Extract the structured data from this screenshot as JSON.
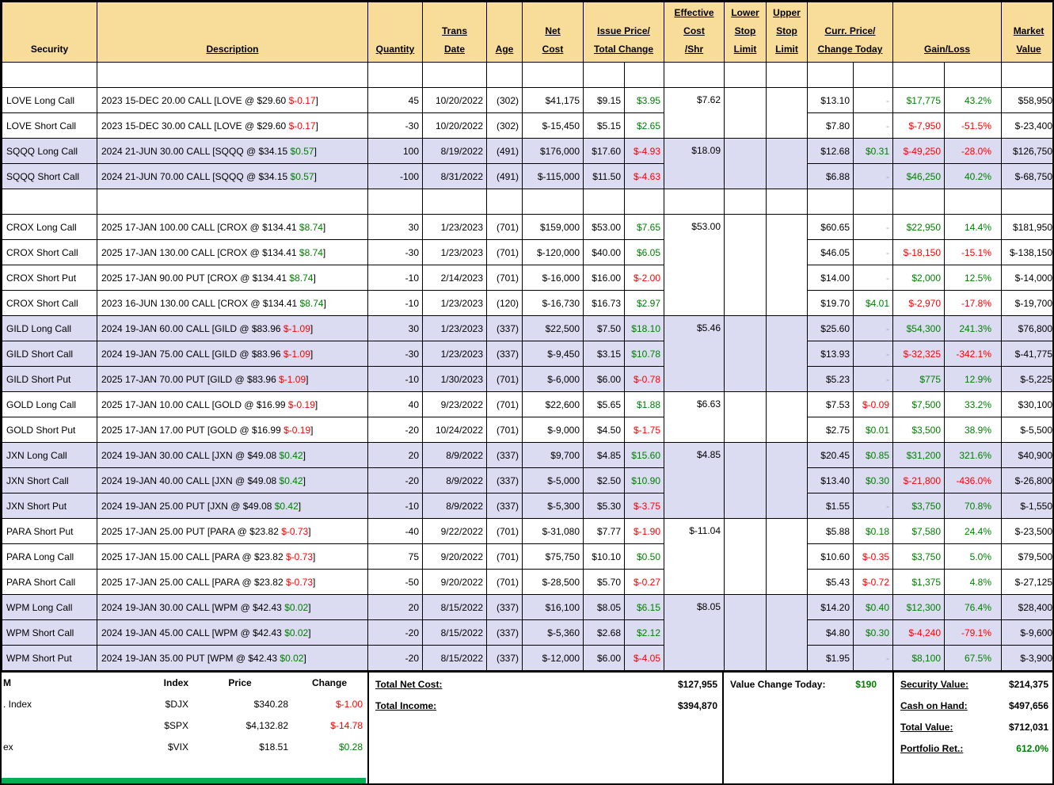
{
  "colors": {
    "positive": "#008000",
    "negative": "#FF0000",
    "neutral_dash": "#9BA3B0",
    "header_bg": "#F8DC9A",
    "row_alt_bg": "#DBDBF2",
    "accent_bar": "#00B050"
  },
  "positions": {
    "desc_close": "]",
    "header_cells": [
      {
        "id": "security",
        "label": "Security",
        "underline": false
      },
      {
        "id": "description",
        "label": "Description",
        "underline": true
      },
      {
        "id": "quantity",
        "label": "Quantity",
        "underline": true
      },
      {
        "id": "trans-date",
        "label": "Trans\nDate",
        "underline": true
      },
      {
        "id": "age",
        "label": "Age",
        "underline": true
      },
      {
        "id": "net-cost",
        "label": "Net\nCost",
        "underline": true
      },
      {
        "id": "issue-price-total-change",
        "label": "Issue Price/\nTotal Change",
        "underline": true,
        "span": 2
      },
      {
        "id": "effective-cost-shr",
        "label": "Effective\nCost\n/Shr",
        "underline": true
      },
      {
        "id": "lower-stop-limit",
        "label": "Lower\nStop\nLimit",
        "underline": true
      },
      {
        "id": "upper-stop-limit",
        "label": "Upper\nStop\nLimit",
        "underline": true
      },
      {
        "id": "curr-price-change-today",
        "label": "Curr. Price/\nChange Today",
        "underline": true,
        "span": 2
      },
      {
        "id": "gain-loss",
        "label": "Gain/Loss",
        "underline": true,
        "span": 2
      },
      {
        "id": "market-value",
        "label": "Market\nValue",
        "underline": true
      }
    ],
    "groups": [
      {
        "spacer": true
      },
      {
        "ticker": "LOVE",
        "shade": "base",
        "effective_cost": "$7.62",
        "rows": [
          {
            "security": "LOVE Long Call",
            "desc_pre": "2023 15-DEC 20.00 CALL [LOVE @ $29.60 ",
            "desc_chg": "$-0.17",
            "desc_dir": "down",
            "qty": "45",
            "date": "10/20/2022",
            "age": "(302)",
            "net_cost": "$41,175",
            "issue": "$9.15",
            "tchg": "$3.95",
            "tchg_dir": "up",
            "curr": "$13.10",
            "today": "-",
            "today_dir": "",
            "gain": "$17,775",
            "pct": "43.2%",
            "gain_dir": "up",
            "mv": "$58,950"
          },
          {
            "security": "LOVE Short Call",
            "desc_pre": "2023 15-DEC 30.00 CALL [LOVE @ $29.60 ",
            "desc_chg": "$-0.17",
            "desc_dir": "down",
            "qty": "-30",
            "date": "10/20/2022",
            "age": "(302)",
            "net_cost": "$-15,450",
            "issue": "$5.15",
            "tchg": "$2.65",
            "tchg_dir": "up",
            "curr": "$7.80",
            "today": "-",
            "today_dir": "",
            "gain": "$-7,950",
            "pct": "-51.5%",
            "gain_dir": "down",
            "mv": "$-23,400"
          }
        ]
      },
      {
        "ticker": "SQQQ",
        "shade": "alt",
        "effective_cost": "$18.09",
        "rows": [
          {
            "security": "SQQQ Long Call",
            "desc_pre": "2024 21-JUN 30.00 CALL [SQQQ @ $34.15 ",
            "desc_chg": "$0.57",
            "desc_dir": "up",
            "qty": "100",
            "date": "8/19/2022",
            "age": "(491)",
            "net_cost": "$176,000",
            "issue": "$17.60",
            "tchg": "$-4.93",
            "tchg_dir": "down",
            "curr": "$12.68",
            "today": "$0.31",
            "today_dir": "up",
            "gain": "$-49,250",
            "pct": "-28.0%",
            "gain_dir": "down",
            "mv": "$126,750"
          },
          {
            "security": "SQQQ Short Call",
            "desc_pre": "2024 21-JUN 70.00 CALL [SQQQ @ $34.15 ",
            "desc_chg": "$0.57",
            "desc_dir": "up",
            "qty": "-100",
            "date": "8/31/2022",
            "age": "(491)",
            "net_cost": "$-115,000",
            "issue": "$11.50",
            "tchg": "$-4.63",
            "tchg_dir": "down",
            "curr": "$6.88",
            "today": "-",
            "today_dir": "",
            "gain": "$46,250",
            "pct": "40.2%",
            "gain_dir": "up",
            "mv": "$-68,750"
          }
        ]
      },
      {
        "spacer": true
      },
      {
        "ticker": "CROX",
        "shade": "base",
        "effective_cost": "$53.00",
        "rows": [
          {
            "security": "CROX Long Call",
            "desc_pre": "2025 17-JAN 100.00 CALL [CROX @ $134.41 ",
            "desc_chg": "$8.74",
            "desc_dir": "up",
            "qty": "30",
            "date": "1/23/2023",
            "age": "(701)",
            "net_cost": "$159,000",
            "issue": "$53.00",
            "tchg": "$7.65",
            "tchg_dir": "up",
            "curr": "$60.65",
            "today": "-",
            "today_dir": "",
            "gain": "$22,950",
            "pct": "14.4%",
            "gain_dir": "up",
            "mv": "$181,950"
          },
          {
            "security": "CROX Short Call",
            "desc_pre": "2025 17-JAN 130.00 CALL [CROX @ $134.41 ",
            "desc_chg": "$8.74",
            "desc_dir": "up",
            "qty": "-30",
            "date": "1/23/2023",
            "age": "(701)",
            "net_cost": "$-120,000",
            "issue": "$40.00",
            "tchg": "$6.05",
            "tchg_dir": "up",
            "curr": "$46.05",
            "today": "-",
            "today_dir": "",
            "gain": "$-18,150",
            "pct": "-15.1%",
            "gain_dir": "down",
            "mv": "$-138,150"
          },
          {
            "security": "CROX Short Put",
            "desc_pre": "2025 17-JAN 90.00 PUT [CROX @ $134.41 ",
            "desc_chg": "$8.74",
            "desc_dir": "up",
            "qty": "-10",
            "date": "2/14/2023",
            "age": "(701)",
            "net_cost": "$-16,000",
            "issue": "$16.00",
            "tchg": "$-2.00",
            "tchg_dir": "down",
            "curr": "$14.00",
            "today": "-",
            "today_dir": "",
            "gain": "$2,000",
            "pct": "12.5%",
            "gain_dir": "up",
            "mv": "$-14,000"
          },
          {
            "security": "CROX Short Call",
            "desc_pre": "2023 16-JUN 130.00 CALL [CROX @ $134.41 ",
            "desc_chg": "$8.74",
            "desc_dir": "up",
            "qty": "-10",
            "date": "1/23/2023",
            "age": "(120)",
            "net_cost": "$-16,730",
            "issue": "$16.73",
            "tchg": "$2.97",
            "tchg_dir": "up",
            "curr": "$19.70",
            "today": "$4.01",
            "today_dir": "up",
            "gain": "$-2,970",
            "pct": "-17.8%",
            "gain_dir": "down",
            "mv": "$-19,700"
          }
        ]
      },
      {
        "ticker": "GILD",
        "shade": "alt",
        "effective_cost": "$5.46",
        "rows": [
          {
            "security": "GILD Long Call",
            "desc_pre": "2024 19-JAN 60.00 CALL [GILD @ $83.96 ",
            "desc_chg": "$-1.09",
            "desc_dir": "down",
            "qty": "30",
            "date": "1/23/2023",
            "age": "(337)",
            "net_cost": "$22,500",
            "issue": "$7.50",
            "tchg": "$18.10",
            "tchg_dir": "up",
            "curr": "$25.60",
            "today": "-",
            "today_dir": "",
            "gain": "$54,300",
            "pct": "241.3%",
            "gain_dir": "up",
            "mv": "$76,800"
          },
          {
            "security": "GILD Short Call",
            "desc_pre": "2024 19-JAN 75.00 CALL [GILD @ $83.96 ",
            "desc_chg": "$-1.09",
            "desc_dir": "down",
            "qty": "-30",
            "date": "1/23/2023",
            "age": "(337)",
            "net_cost": "$-9,450",
            "issue": "$3.15",
            "tchg": "$10.78",
            "tchg_dir": "up",
            "curr": "$13.93",
            "today": "-",
            "today_dir": "",
            "gain": "$-32,325",
            "pct": "-342.1%",
            "gain_dir": "down",
            "mv": "$-41,775"
          },
          {
            "security": "GILD Short Put",
            "desc_pre": "2025 17-JAN 70.00 PUT [GILD @ $83.96 ",
            "desc_chg": "$-1.09",
            "desc_dir": "down",
            "qty": "-10",
            "date": "1/30/2023",
            "age": "(701)",
            "net_cost": "$-6,000",
            "issue": "$6.00",
            "tchg": "$-0.78",
            "tchg_dir": "down",
            "curr": "$5.23",
            "today": "-",
            "today_dir": "",
            "gain": "$775",
            "pct": "12.9%",
            "gain_dir": "up",
            "mv": "$-5,225"
          }
        ]
      },
      {
        "ticker": "GOLD",
        "shade": "base",
        "effective_cost": "$6.63",
        "rows": [
          {
            "security": "GOLD Long Call",
            "desc_pre": "2025 17-JAN 10.00 CALL [GOLD @ $16.99 ",
            "desc_chg": "$-0.19",
            "desc_dir": "down",
            "qty": "40",
            "date": "9/23/2022",
            "age": "(701)",
            "net_cost": "$22,600",
            "issue": "$5.65",
            "tchg": "$1.88",
            "tchg_dir": "up",
            "curr": "$7.53",
            "today": "$-0.09",
            "today_dir": "down",
            "gain": "$7,500",
            "pct": "33.2%",
            "gain_dir": "up",
            "mv": "$30,100"
          },
          {
            "security": "GOLD Short Put",
            "desc_pre": "2025 17-JAN 17.00 PUT [GOLD @ $16.99 ",
            "desc_chg": "$-0.19",
            "desc_dir": "down",
            "qty": "-20",
            "date": "10/24/2022",
            "age": "(701)",
            "net_cost": "$-9,000",
            "issue": "$4.50",
            "tchg": "$-1.75",
            "tchg_dir": "down",
            "curr": "$2.75",
            "today": "$0.01",
            "today_dir": "up",
            "gain": "$3,500",
            "pct": "38.9%",
            "gain_dir": "up",
            "mv": "$-5,500"
          }
        ]
      },
      {
        "ticker": "JXN",
        "shade": "alt",
        "effective_cost": "$4.85",
        "rows": [
          {
            "security": "JXN Long Call",
            "desc_pre": "2024 19-JAN 30.00 CALL [JXN @ $49.08 ",
            "desc_chg": "$0.42",
            "desc_dir": "up",
            "qty": "20",
            "date": "8/9/2022",
            "age": "(337)",
            "net_cost": "$9,700",
            "issue": "$4.85",
            "tchg": "$15.60",
            "tchg_dir": "up",
            "curr": "$20.45",
            "today": "$0.85",
            "today_dir": "up",
            "gain": "$31,200",
            "pct": "321.6%",
            "gain_dir": "up",
            "mv": "$40,900"
          },
          {
            "security": "JXN Short Call",
            "desc_pre": "2024 19-JAN 40.00 CALL [JXN @ $49.08 ",
            "desc_chg": "$0.42",
            "desc_dir": "up",
            "qty": "-20",
            "date": "8/9/2022",
            "age": "(337)",
            "net_cost": "$-5,000",
            "issue": "$2.50",
            "tchg": "$10.90",
            "tchg_dir": "up",
            "curr": "$13.40",
            "today": "$0.30",
            "today_dir": "up",
            "gain": "$-21,800",
            "pct": "-436.0%",
            "gain_dir": "down",
            "mv": "$-26,800"
          },
          {
            "security": "JXN Short Put",
            "desc_pre": "2024 19-JAN 25.00 PUT [JXN @ $49.08 ",
            "desc_chg": "$0.42",
            "desc_dir": "up",
            "qty": "-10",
            "date": "8/9/2022",
            "age": "(337)",
            "net_cost": "$-5,300",
            "issue": "$5.30",
            "tchg": "$-3.75",
            "tchg_dir": "down",
            "curr": "$1.55",
            "today": "-",
            "today_dir": "",
            "gain": "$3,750",
            "pct": "70.8%",
            "gain_dir": "up",
            "mv": "$-1,550"
          }
        ]
      },
      {
        "ticker": "PARA",
        "shade": "base",
        "effective_cost": "$-11.04",
        "rows": [
          {
            "security": "PARA Short Put",
            "desc_pre": "2025 17-JAN 25.00 PUT [PARA @ $23.82 ",
            "desc_chg": "$-0.73",
            "desc_dir": "down",
            "qty": "-40",
            "date": "9/22/2022",
            "age": "(701)",
            "net_cost": "$-31,080",
            "issue": "$7.77",
            "tchg": "$-1.90",
            "tchg_dir": "down",
            "curr": "$5.88",
            "today": "$0.18",
            "today_dir": "up",
            "gain": "$7,580",
            "pct": "24.4%",
            "gain_dir": "up",
            "mv": "$-23,500"
          },
          {
            "security": "PARA Long Call",
            "desc_pre": "2025 17-JAN 15.00 CALL [PARA @ $23.82 ",
            "desc_chg": "$-0.73",
            "desc_dir": "down",
            "qty": "75",
            "date": "9/20/2022",
            "age": "(701)",
            "net_cost": "$75,750",
            "issue": "$10.10",
            "tchg": "$0.50",
            "tchg_dir": "up",
            "curr": "$10.60",
            "today": "$-0.35",
            "today_dir": "down",
            "gain": "$3,750",
            "pct": "5.0%",
            "gain_dir": "up",
            "mv": "$79,500"
          },
          {
            "security": "PARA Short Call",
            "desc_pre": "2025 17-JAN 25.00 CALL [PARA @ $23.82 ",
            "desc_chg": "$-0.73",
            "desc_dir": "down",
            "qty": "-50",
            "date": "9/20/2022",
            "age": "(701)",
            "net_cost": "$-28,500",
            "issue": "$5.70",
            "tchg": "$-0.27",
            "tchg_dir": "down",
            "curr": "$5.43",
            "today": "$-0.72",
            "today_dir": "down",
            "gain": "$1,375",
            "pct": "4.8%",
            "gain_dir": "up",
            "mv": "$-27,125"
          }
        ]
      },
      {
        "ticker": "WPM",
        "shade": "alt",
        "effective_cost": "$8.05",
        "rows": [
          {
            "security": "WPM Long Call",
            "desc_pre": "2024 19-JAN 30.00 CALL [WPM @ $42.43 ",
            "desc_chg": "$0.02",
            "desc_dir": "up",
            "qty": "20",
            "date": "8/15/2022",
            "age": "(337)",
            "net_cost": "$16,100",
            "issue": "$8.05",
            "tchg": "$6.15",
            "tchg_dir": "up",
            "curr": "$14.20",
            "today": "$0.40",
            "today_dir": "up",
            "gain": "$12,300",
            "pct": "76.4%",
            "gain_dir": "up",
            "mv": "$28,400"
          },
          {
            "security": "WPM Short Call",
            "desc_pre": "2024 19-JAN 45.00 CALL [WPM @ $42.43 ",
            "desc_chg": "$0.02",
            "desc_dir": "up",
            "qty": "-20",
            "date": "8/15/2022",
            "age": "(337)",
            "net_cost": "$-5,360",
            "issue": "$2.68",
            "tchg": "$2.12",
            "tchg_dir": "up",
            "curr": "$4.80",
            "today": "$0.30",
            "today_dir": "up",
            "gain": "$-4,240",
            "pct": "-79.1%",
            "gain_dir": "down",
            "mv": "$-9,600"
          },
          {
            "security": "WPM Short Put",
            "desc_pre": "2024 19-JAN 35.00 PUT [WPM @ $42.43 ",
            "desc_chg": "$0.02",
            "desc_dir": "up",
            "qty": "-20",
            "date": "8/15/2022",
            "age": "(337)",
            "net_cost": "$-12,000",
            "issue": "$6.00",
            "tchg": "$-4.05",
            "tchg_dir": "down",
            "curr": "$1.95",
            "today": "-",
            "today_dir": "",
            "gain": "$8,100",
            "pct": "67.5%",
            "gain_dir": "up",
            "mv": "$-3,900"
          }
        ]
      }
    ]
  },
  "footer": {
    "index_panel": {
      "clipped_header_text": "M",
      "columns": {
        "index": "Index",
        "price": "Price",
        "change": "Change"
      },
      "rows": [
        {
          "label": ". Index",
          "symbol": "$DJX",
          "price": "$340.28",
          "change": "$-1.00",
          "dir": "down"
        },
        {
          "label": "",
          "symbol": "$SPX",
          "price": "$4,132.82",
          "change": "$-14.78",
          "dir": "down"
        },
        {
          "label": "ex",
          "symbol": "$VIX",
          "price": "$18.51",
          "change": "$0.28",
          "dir": "up"
        }
      ]
    },
    "cost_summary": {
      "rows": [
        {
          "label": "Total Net Cost:",
          "value": "$127,955"
        },
        {
          "label": "Total Income:",
          "value": "$394,870"
        }
      ]
    },
    "value_change": {
      "label": "Value Change Today:",
      "value": "$190",
      "dir": "up"
    },
    "portfolio_summary": {
      "rows": [
        {
          "label": "Security Value:",
          "value": "$214,375"
        },
        {
          "label": "Cash on Hand:",
          "value": "$497,656"
        },
        {
          "label": "Total Value:",
          "value": "$712,031"
        },
        {
          "label": "Portfolio Ret.:",
          "value": "612.0%",
          "dir": "up"
        }
      ]
    }
  }
}
